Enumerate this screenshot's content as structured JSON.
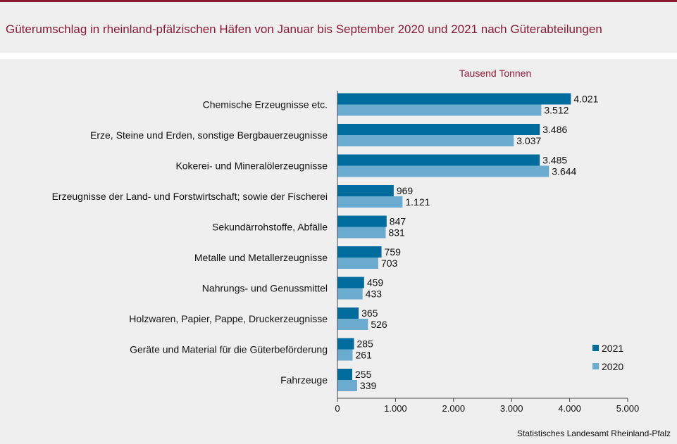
{
  "header": {
    "title": "Güterumschlag in rheinland-pfälzischen Häfen von Januar bis September 2020 und 2021 nach Güterabteilungen"
  },
  "source": "Statistisches Landesamt Rheinland-Pfalz",
  "colors": {
    "series_2021": "#006c9e",
    "series_2020": "#6cabd0",
    "accent": "#8b1a35"
  },
  "chart_data": {
    "type": "bar",
    "orientation": "horizontal",
    "unit_label": "Tausend Tonnen",
    "categories": [
      "Chemische Erzeugnisse etc.",
      "Erze, Steine und Erden, sonstige Bergbauerzeugnisse",
      "Kokerei- und Mineralölerzeugnisse",
      "Erzeugnisse der Land- und Forstwirtschaft; sowie der Fischerei",
      "Sekundärrohstoffe, Abfälle",
      "Metalle und Metallerzeugnisse",
      "Nahrungs- und Genussmittel",
      "Holzwaren, Papier, Pappe, Druckerzeugnisse",
      "Geräte und Material für die Güterbeförderung",
      "Fahrzeuge"
    ],
    "series": [
      {
        "name": "2021",
        "values": [
          4021,
          3486,
          3485,
          969,
          847,
          759,
          459,
          365,
          285,
          255
        ],
        "labels": [
          "4.021",
          "3.486",
          "3.485",
          "969",
          "847",
          "759",
          "459",
          "365",
          "285",
          "255"
        ]
      },
      {
        "name": "2020",
        "values": [
          3512,
          3037,
          3644,
          1121,
          831,
          703,
          433,
          526,
          261,
          339
        ],
        "labels": [
          "3.512",
          "3.037",
          "3.644",
          "1.121",
          "831",
          "703",
          "433",
          "526",
          "261",
          "339"
        ]
      }
    ],
    "xlim": [
      0,
      5000
    ],
    "xticks": [
      0,
      1000,
      2000,
      3000,
      4000,
      5000
    ],
    "xtick_labels": [
      "0",
      "1.000",
      "2.000",
      "3.000",
      "4.000",
      "5.000"
    ],
    "grid": false,
    "legend_position": "bottom-right"
  }
}
